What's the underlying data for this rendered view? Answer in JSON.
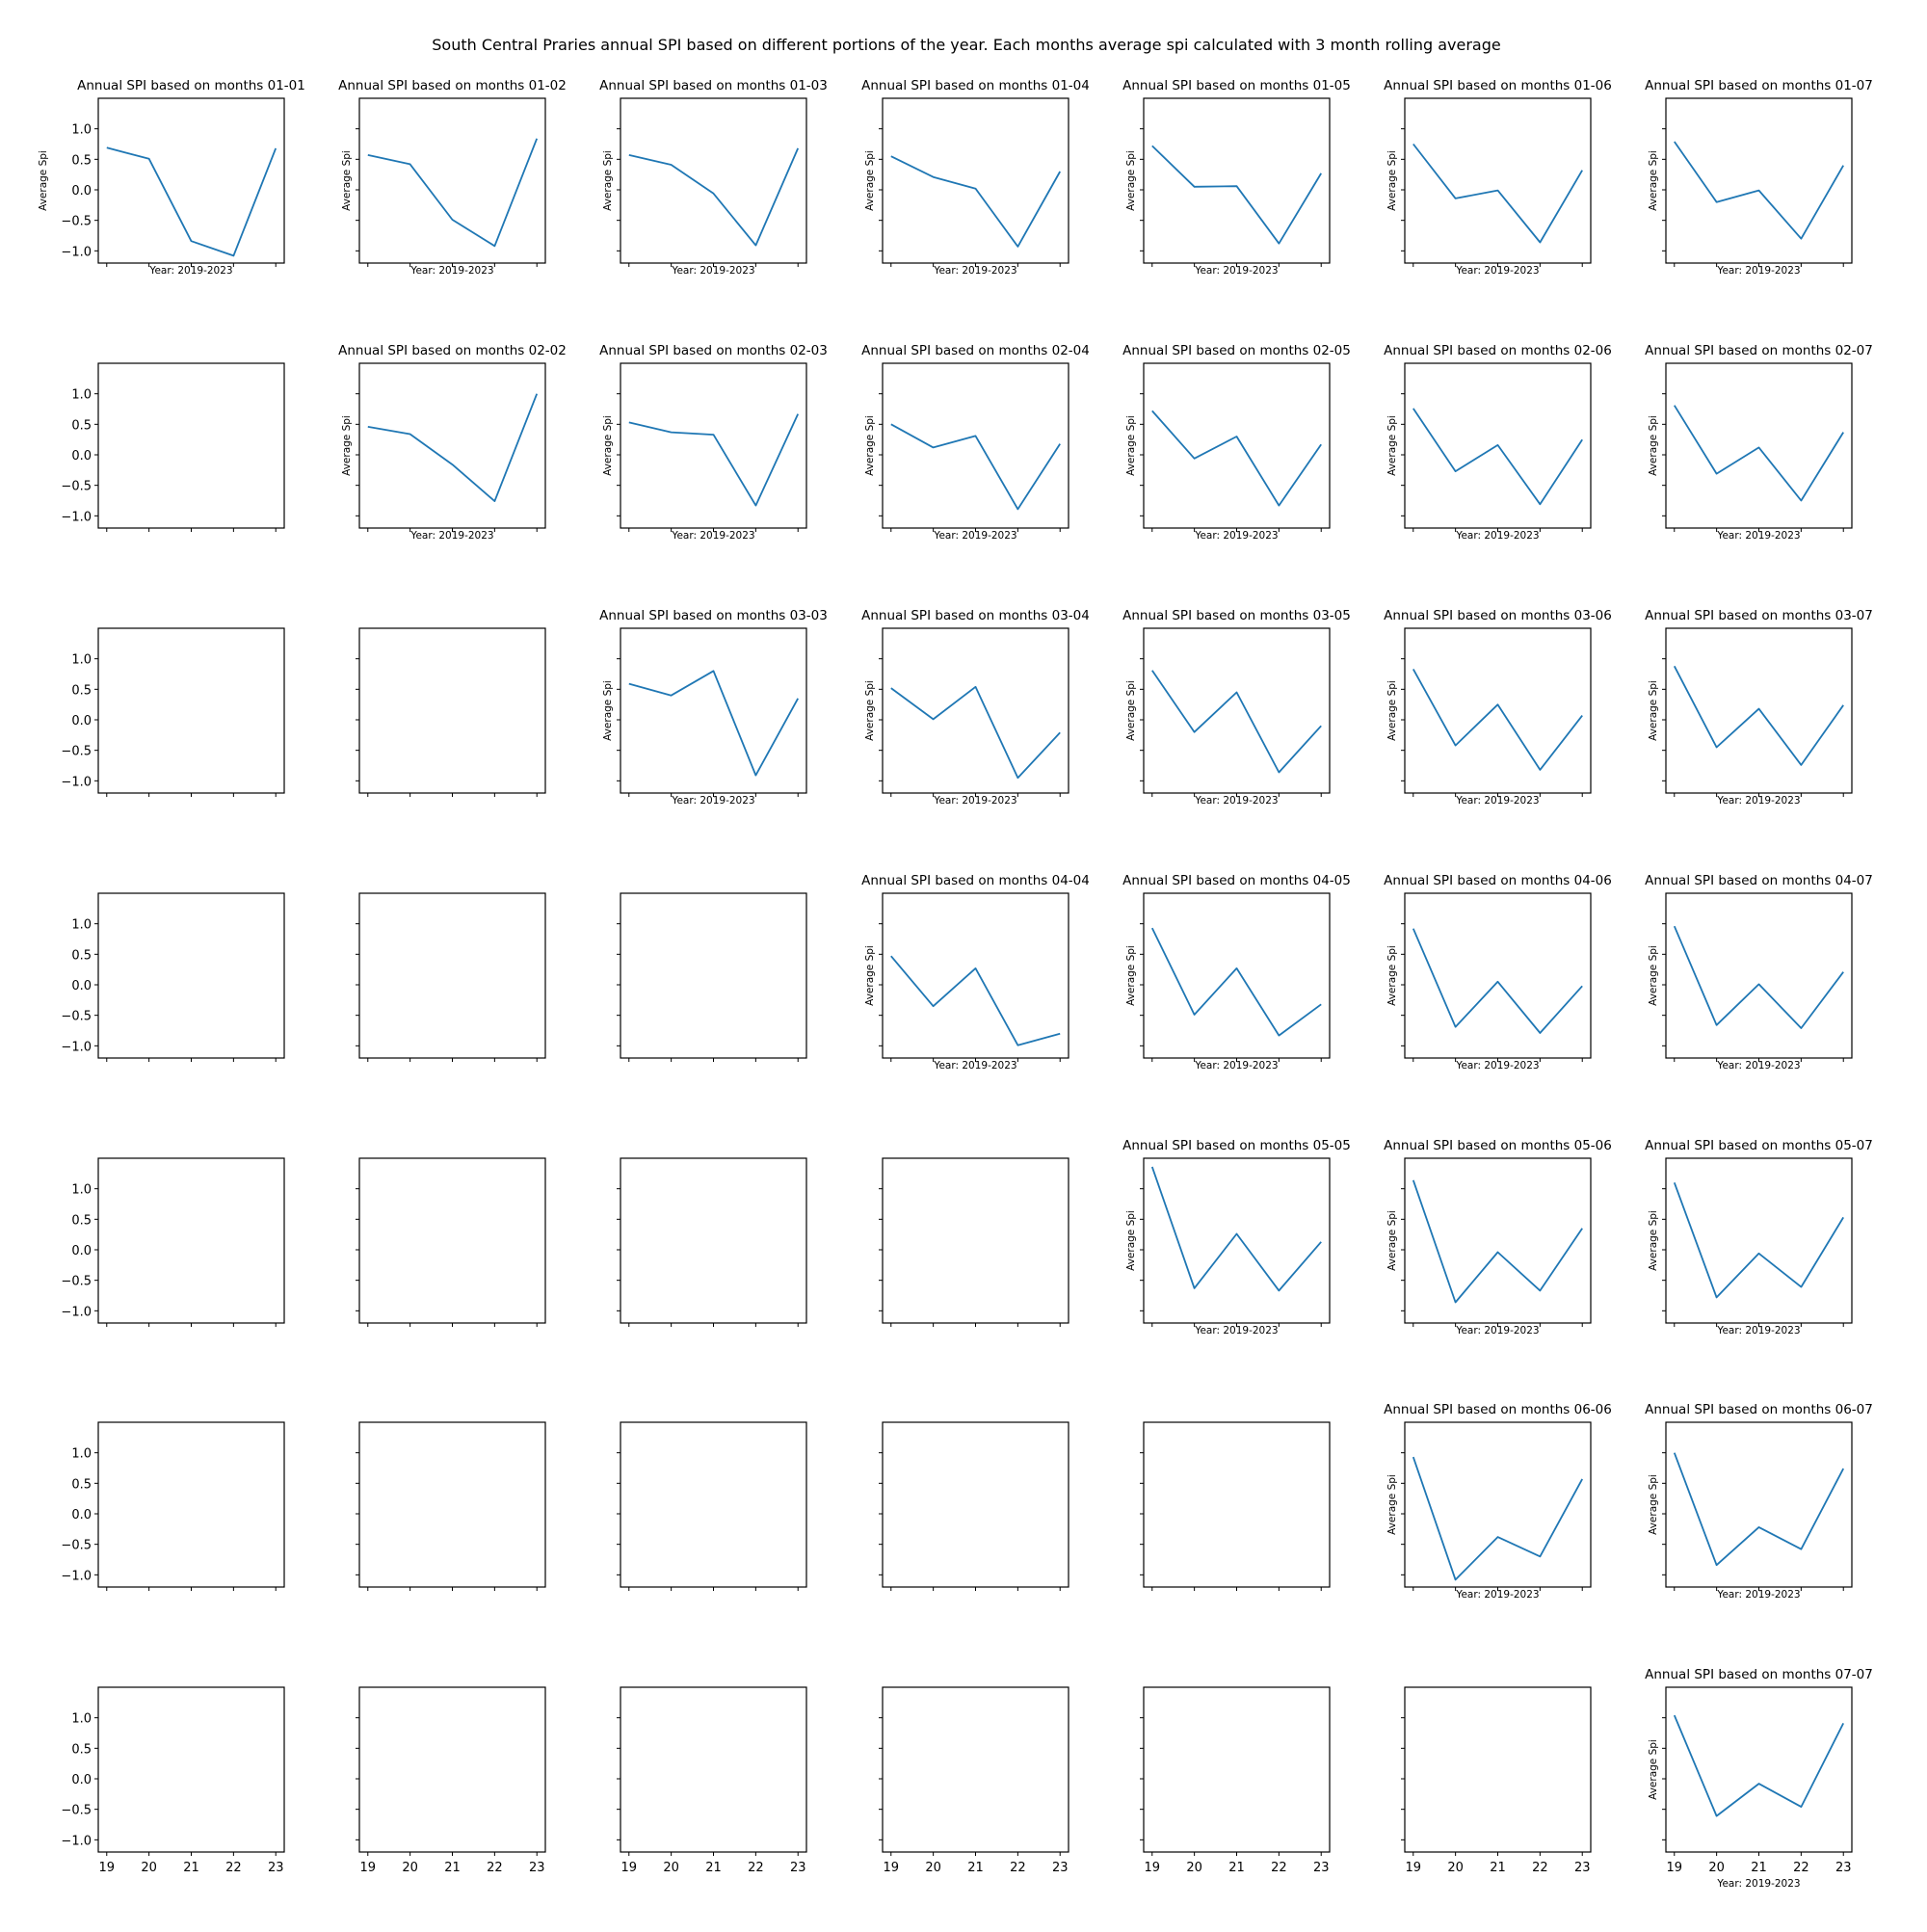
{
  "figure": {
    "title": "South Central Praries annual SPI based on different portions of the year. Each months average spi calculated with 3  month rolling average"
  },
  "common": {
    "x_ticks": [
      "19",
      "20",
      "21",
      "22",
      "23"
    ],
    "y_ticks": [
      "1.0",
      "0.5",
      "0.0",
      "−0.5",
      "−1.0"
    ],
    "x_label": "Year: 2019-2023",
    "y_label": "Average Spi",
    "line_color": "#1f77b4"
  },
  "chart_data": {
    "type": "line",
    "layout": "7x7 grid of subplots; upper-triangular panels (row month ≤ column month) contain a line, the rest are empty axes",
    "x": [
      2019,
      2020,
      2021,
      2022,
      2023
    ],
    "ylim": [
      -1.2,
      1.5
    ],
    "xlabel": "Year: 2019-2023",
    "ylabel": "Average Spi",
    "grid": false,
    "panels": [
      {
        "title": "Annual SPI based on months 01-01",
        "row": 0,
        "col": 0,
        "values": [
          0.69,
          0.51,
          -0.84,
          -1.08,
          0.68
        ]
      },
      {
        "title": "Annual SPI based on months 01-02",
        "row": 0,
        "col": 1,
        "values": [
          0.57,
          0.42,
          -0.49,
          -0.92,
          0.84
        ]
      },
      {
        "title": "Annual SPI based on months 01-03",
        "row": 0,
        "col": 2,
        "values": [
          0.57,
          0.41,
          -0.06,
          -0.91,
          0.68
        ]
      },
      {
        "title": "Annual SPI based on months 01-04",
        "row": 0,
        "col": 3,
        "values": [
          0.55,
          0.21,
          0.02,
          -0.93,
          0.3
        ]
      },
      {
        "title": "Annual SPI based on months 01-05",
        "row": 0,
        "col": 4,
        "values": [
          0.72,
          0.05,
          0.06,
          -0.88,
          0.27
        ]
      },
      {
        "title": "Annual SPI based on months 01-06",
        "row": 0,
        "col": 5,
        "values": [
          0.75,
          -0.14,
          -0.01,
          -0.86,
          0.32
        ]
      },
      {
        "title": "Annual SPI based on months 01-07",
        "row": 0,
        "col": 6,
        "values": [
          0.79,
          -0.2,
          -0.01,
          -0.8,
          0.4
        ]
      },
      {
        "title": "Annual SPI based on months 02-02",
        "row": 1,
        "col": 1,
        "values": [
          0.46,
          0.34,
          -0.16,
          -0.76,
          1.0
        ]
      },
      {
        "title": "Annual SPI based on months 02-03",
        "row": 1,
        "col": 2,
        "values": [
          0.53,
          0.37,
          0.33,
          -0.83,
          0.67
        ]
      },
      {
        "title": "Annual SPI based on months 02-04",
        "row": 1,
        "col": 3,
        "values": [
          0.5,
          0.12,
          0.31,
          -0.89,
          0.18
        ]
      },
      {
        "title": "Annual SPI based on months 02-05",
        "row": 1,
        "col": 4,
        "values": [
          0.72,
          -0.06,
          0.3,
          -0.83,
          0.17
        ]
      },
      {
        "title": "Annual SPI based on months 02-06",
        "row": 1,
        "col": 5,
        "values": [
          0.76,
          -0.27,
          0.16,
          -0.81,
          0.25
        ]
      },
      {
        "title": "Annual SPI based on months 02-07",
        "row": 1,
        "col": 6,
        "values": [
          0.81,
          -0.31,
          0.12,
          -0.75,
          0.37
        ]
      },
      {
        "title": "Annual SPI based on months 03-03",
        "row": 2,
        "col": 2,
        "values": [
          0.59,
          0.4,
          0.8,
          -0.91,
          0.35
        ]
      },
      {
        "title": "Annual SPI based on months 03-04",
        "row": 2,
        "col": 3,
        "values": [
          0.52,
          0.01,
          0.54,
          -0.95,
          -0.21
        ]
      },
      {
        "title": "Annual SPI based on months 03-05",
        "row": 2,
        "col": 4,
        "values": [
          0.81,
          -0.2,
          0.45,
          -0.86,
          -0.1
        ]
      },
      {
        "title": "Annual SPI based on months 03-06",
        "row": 2,
        "col": 5,
        "values": [
          0.83,
          -0.42,
          0.25,
          -0.82,
          0.07
        ]
      },
      {
        "title": "Annual SPI based on months 03-07",
        "row": 2,
        "col": 6,
        "values": [
          0.88,
          -0.45,
          0.18,
          -0.74,
          0.24
        ]
      },
      {
        "title": "Annual SPI based on months 04-04",
        "row": 3,
        "col": 3,
        "values": [
          0.47,
          -0.35,
          0.27,
          -0.99,
          -0.8
        ]
      },
      {
        "title": "Annual SPI based on months 04-05",
        "row": 3,
        "col": 4,
        "values": [
          0.93,
          -0.49,
          0.27,
          -0.83,
          -0.32
        ]
      },
      {
        "title": "Annual SPI based on months 04-06",
        "row": 3,
        "col": 5,
        "values": [
          0.92,
          -0.69,
          0.05,
          -0.79,
          -0.02
        ]
      },
      {
        "title": "Annual SPI based on months 04-07",
        "row": 3,
        "col": 6,
        "values": [
          0.96,
          -0.66,
          0.01,
          -0.71,
          0.21
        ]
      },
      {
        "title": "Annual SPI based on months 05-05",
        "row": 4,
        "col": 4,
        "values": [
          1.36,
          -0.63,
          0.26,
          -0.67,
          0.13
        ]
      },
      {
        "title": "Annual SPI based on months 05-06",
        "row": 4,
        "col": 5,
        "values": [
          1.14,
          -0.86,
          -0.04,
          -0.67,
          0.35
        ]
      },
      {
        "title": "Annual SPI based on months 05-07",
        "row": 4,
        "col": 6,
        "values": [
          1.1,
          -0.78,
          -0.06,
          -0.61,
          0.53
        ]
      },
      {
        "title": "Annual SPI based on months 06-06",
        "row": 5,
        "col": 5,
        "values": [
          0.93,
          -1.08,
          -0.38,
          -0.7,
          0.57
        ]
      },
      {
        "title": "Annual SPI based on months 06-07",
        "row": 5,
        "col": 6,
        "values": [
          1.0,
          -0.84,
          -0.22,
          -0.58,
          0.74
        ]
      },
      {
        "title": "Annual SPI based on months 07-07",
        "row": 6,
        "col": 6,
        "values": [
          1.04,
          -0.61,
          -0.08,
          -0.46,
          0.91
        ]
      }
    ]
  }
}
